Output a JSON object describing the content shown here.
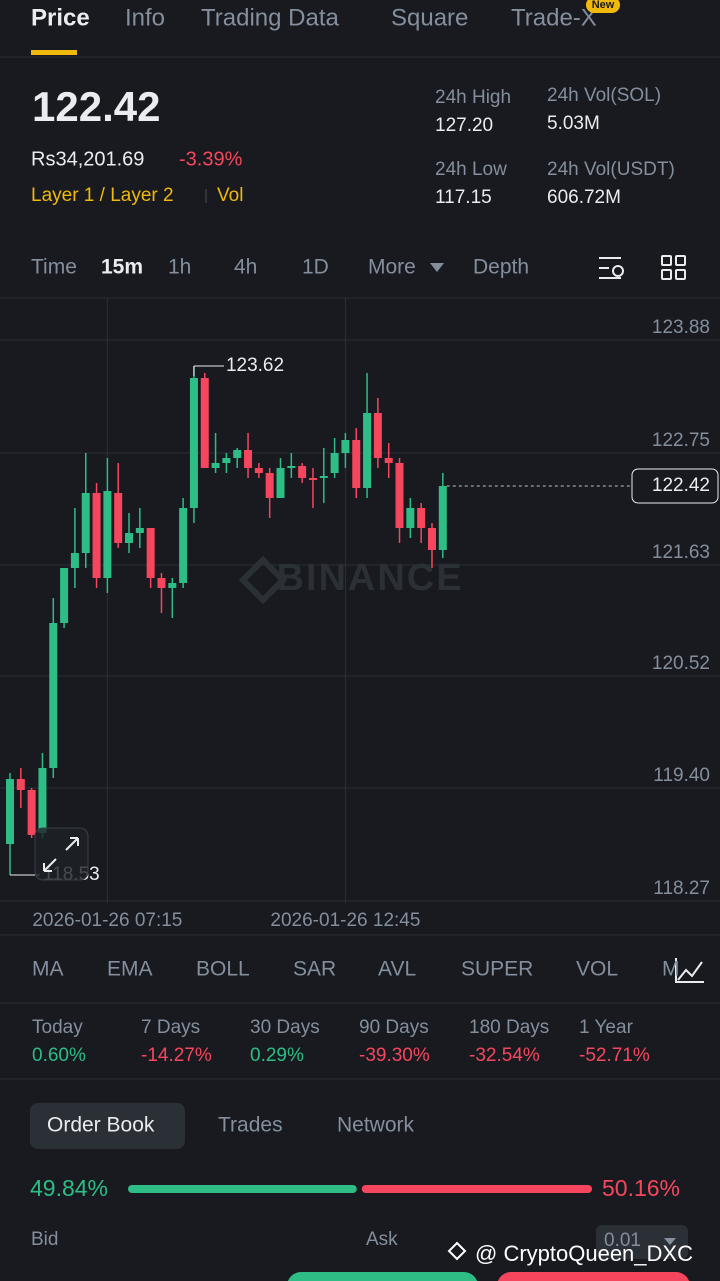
{
  "tabs": [
    "Price",
    "Info",
    "Trading Data",
    "Square",
    "Trade-X"
  ],
  "new_badge": "New",
  "ticker": {
    "price": "122.42",
    "fiat": "Rs34,201.69",
    "change": "-3.39%",
    "tags": [
      "Layer 1 / Layer 2",
      "Vol"
    ]
  },
  "stats": [
    {
      "label": "24h High",
      "value": "127.20"
    },
    {
      "label": "24h Vol(SOL)",
      "value": "5.03M"
    },
    {
      "label": "24h Low",
      "value": "117.15"
    },
    {
      "label": "24h Vol(USDT)",
      "value": "606.72M"
    }
  ],
  "intervals": [
    "Time",
    "15m",
    "1h",
    "4h",
    "1D",
    "More",
    "Depth"
  ],
  "chart_data": {
    "type": "candlestick",
    "categories": [
      null,
      null,
      null,
      null,
      null,
      null,
      null,
      null,
      null,
      "2026-01-26 07:15",
      null,
      null,
      null,
      null,
      null,
      null,
      null,
      null,
      null,
      null,
      null,
      null,
      null,
      null,
      null,
      null,
      null,
      null,
      null,
      null,
      null,
      "2026-01-26 12:45",
      null,
      null,
      null,
      null,
      null,
      null,
      null,
      null,
      null
    ],
    "open": [
      118.84,
      119.49,
      119.38,
      118.95,
      119.6,
      121.05,
      121.6,
      121.75,
      122.35,
      121.5,
      122.35,
      121.85,
      121.95,
      122.0,
      121.5,
      121.4,
      121.45,
      122.2,
      123.5,
      122.6,
      122.65,
      122.7,
      122.78,
      122.6,
      122.55,
      122.3,
      122.6,
      122.62,
      122.5,
      122.5,
      122.55,
      122.75,
      122.88,
      122.4,
      123.15,
      122.7,
      122.65,
      122.0,
      122.2,
      122.0,
      121.78
    ],
    "high": [
      119.55,
      119.6,
      119.4,
      119.75,
      121.3,
      121.6,
      122.2,
      122.75,
      122.45,
      122.7,
      122.65,
      122.15,
      122.2,
      122.0,
      121.55,
      121.5,
      122.3,
      123.62,
      123.55,
      122.95,
      122.75,
      122.8,
      122.95,
      122.65,
      122.6,
      122.7,
      122.75,
      122.65,
      122.6,
      122.8,
      122.9,
      122.95,
      123.0,
      123.55,
      123.3,
      122.85,
      122.7,
      122.3,
      122.25,
      122.05,
      122.55
    ],
    "low": [
      118.53,
      119.2,
      118.9,
      118.9,
      119.5,
      121.0,
      121.4,
      121.6,
      121.4,
      121.35,
      121.8,
      121.75,
      121.8,
      121.4,
      121.15,
      121.1,
      121.4,
      122.05,
      122.6,
      122.55,
      122.55,
      122.6,
      122.5,
      122.5,
      122.1,
      122.3,
      122.5,
      122.45,
      122.2,
      122.25,
      122.5,
      122.6,
      122.3,
      122.3,
      122.6,
      122.5,
      121.85,
      121.9,
      121.85,
      121.6,
      121.7
    ],
    "close": [
      119.49,
      119.38,
      118.93,
      119.6,
      121.05,
      121.6,
      121.75,
      122.35,
      121.5,
      122.37,
      121.85,
      121.95,
      122.0,
      121.5,
      121.4,
      121.45,
      122.2,
      123.5,
      122.6,
      122.65,
      122.7,
      122.78,
      122.6,
      122.55,
      122.3,
      122.6,
      122.62,
      122.5,
      122.48,
      122.52,
      122.75,
      122.88,
      122.4,
      123.15,
      122.7,
      122.65,
      122.0,
      122.2,
      122.0,
      121.78,
      122.42
    ],
    "ylim": [
      118.25,
      124.3
    ],
    "yticks": [
      123.88,
      122.75,
      121.63,
      120.52,
      {
        "value": 119.4,
        "label": "119.40"
      },
      118.27
    ],
    "grid": true,
    "up_color": "#2ebd85",
    "down_color": "#f6465d",
    "current_price": 122.42,
    "max_label": 123.62,
    "min_label": 118.53,
    "watermark": "BINANCE"
  },
  "indicators": [
    "MA",
    "EMA",
    "BOLL",
    "SAR",
    "AVL",
    "SUPER",
    "VOL",
    "M"
  ],
  "performance": [
    {
      "label": "Today",
      "value": "0.60%"
    },
    {
      "label": "7 Days",
      "value": "-14.27%"
    },
    {
      "label": "30 Days",
      "value": "0.29%"
    },
    {
      "label": "90 Days",
      "value": "-39.30%"
    },
    {
      "label": "180 Days",
      "value": "-32.54%"
    },
    {
      "label": "1 Year",
      "value": "-52.71%"
    }
  ],
  "book_tabs": [
    "Order Book",
    "Trades",
    "Network"
  ],
  "book_ratio": {
    "values": [
      49.84,
      50.16
    ],
    "value_labels": [
      "49.84%",
      "50.16%"
    ]
  },
  "book_headers": [
    "Bid",
    "Ask"
  ],
  "precision": "0.01",
  "credit": "@ CryptoQueen_DXC"
}
